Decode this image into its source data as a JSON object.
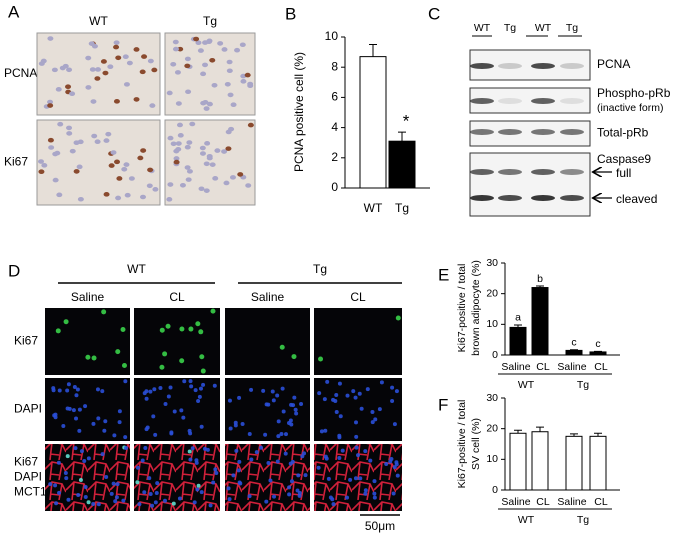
{
  "panel_a": {
    "label": "A",
    "columns": [
      "WT",
      "Tg"
    ],
    "rows": [
      "PCNA",
      "Ki67"
    ]
  },
  "panel_c": {
    "label": "C",
    "lanes": [
      "WT",
      "Tg",
      "WT",
      "Tg"
    ],
    "blots": [
      {
        "name": "PCNA"
      },
      {
        "name": "Phospho-pRb",
        "note": "(inactive form)"
      },
      {
        "name": "Total-pRb"
      },
      {
        "name": "Caspase9",
        "bands": [
          "full",
          "cleaved"
        ]
      }
    ]
  },
  "panel_d": {
    "label": "D",
    "groups": [
      "WT",
      "Tg"
    ],
    "columns": [
      "Saline",
      "CL",
      "Saline",
      "CL"
    ],
    "rows": [
      [
        "Ki67"
      ],
      [
        "DAPI"
      ],
      [
        "Ki67",
        "DAPI",
        "MCT1"
      ]
    ],
    "scale_bar": "50μm"
  },
  "chart_data": [
    {
      "type": "bar",
      "label": "B",
      "ylabel": [
        "PCNA positive cell (%)"
      ],
      "categories": [
        "WT",
        "Tg"
      ],
      "values": [
        8.7,
        3.1
      ],
      "errors": [
        0.8,
        0.6
      ],
      "colors": [
        "#ffffff",
        "#000000"
      ],
      "annotations": [
        null,
        "*"
      ],
      "ylim": [
        0,
        10
      ],
      "yticks": [
        0,
        2,
        4,
        6,
        8,
        10
      ]
    },
    {
      "type": "bar",
      "label": "E",
      "ylabel": [
        "Ki67-positive / total",
        "brown adipocyte (%)"
      ],
      "categories": [
        "Saline",
        "CL",
        "Saline",
        "CL"
      ],
      "groups": [
        "WT",
        "Tg"
      ],
      "values": [
        9,
        22,
        1.5,
        1
      ],
      "errors": [
        0.8,
        0.5,
        0.2,
        0.2
      ],
      "color": "#000000",
      "annotations": [
        "a",
        "b",
        "c",
        "c"
      ],
      "ylim": [
        0,
        30
      ],
      "yticks": [
        0,
        10,
        20,
        30
      ]
    },
    {
      "type": "bar",
      "label": "F",
      "ylabel": [
        "Ki67-positive / total",
        "SV cell (%)"
      ],
      "categories": [
        "Saline",
        "CL",
        "Saline",
        "CL"
      ],
      "groups": [
        "WT",
        "Tg"
      ],
      "values": [
        18.5,
        19,
        17.5,
        17.5
      ],
      "errors": [
        1,
        1.5,
        0.8,
        1
      ],
      "color": "#ffffff",
      "ylim": [
        0,
        30
      ],
      "yticks": [
        0,
        10,
        20,
        30
      ]
    }
  ]
}
